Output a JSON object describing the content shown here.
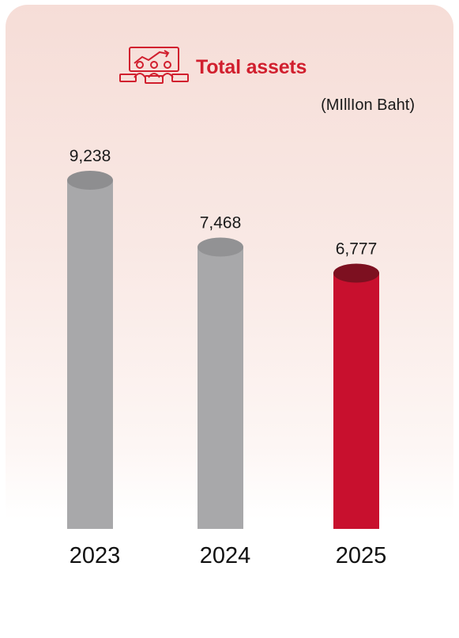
{
  "chart_data": {
    "type": "bar",
    "title": "Total assets",
    "unit": "(MIllIon Baht)",
    "categories": [
      "2023",
      "2024",
      "2025"
    ],
    "values": [
      9238,
      7468,
      6777
    ],
    "value_labels": [
      "9,238",
      "7,468",
      "6,777"
    ],
    "colors": [
      "#a8a8aa",
      "#a8a8aa",
      "#c8102e"
    ],
    "top_colors": [
      "#8e8e90",
      "#929294",
      "#7d1020"
    ],
    "ylim": [
      0,
      9238
    ],
    "grid": false
  },
  "icon": "presentation-chart-icon",
  "accent_color": "#d11f2e"
}
